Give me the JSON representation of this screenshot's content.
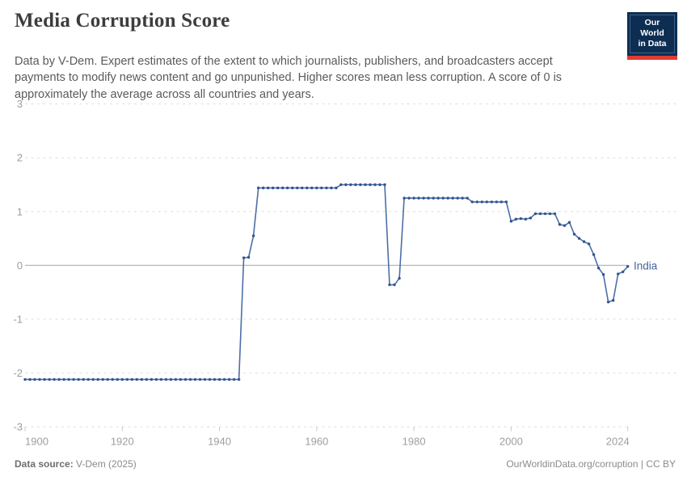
{
  "header": {
    "title": "Media Corruption Score",
    "subtitle": "Data by V-Dem. Expert estimates of the extent to which journalists, publishers, and broadcasters accept payments to modify news content and go unpunished. Higher scores mean less corruption. A score of 0 is approximately the average across all countries and years.",
    "logo": {
      "line1": "Our World",
      "line2": "in Data"
    }
  },
  "footer": {
    "source_label": "Data source:",
    "source_value": " V-Dem (2025)",
    "attribution": "OurWorldinData.org/corruption | CC BY"
  },
  "colors": {
    "line": "#4b6ea9",
    "dot": "#33548f",
    "entity_label": "#44639f",
    "grid_dashed": "#dedede",
    "zero_line": "#a3a3a3",
    "tick_mark": "#c9c9c9",
    "axis_text": "#9e9e9e",
    "logo_bg": "#0d2e52",
    "logo_red": "#e23b34"
  },
  "chart_data": {
    "type": "line",
    "title": "Media Corruption Score",
    "entity": "India",
    "xlabel": "",
    "ylabel": "",
    "x_start": 1900,
    "x_step": 1,
    "x_end": 2024,
    "ylim": [
      -3,
      3
    ],
    "y_ticks": [
      3,
      2,
      1,
      0,
      -1,
      -2,
      -3
    ],
    "x_ticks": [
      1900,
      1920,
      1940,
      1960,
      1980,
      2000,
      2024
    ],
    "grid": "horizontal dashed gridlines, solid zero line",
    "legend": "entity label at end of line",
    "values": [
      -2.12,
      -2.12,
      -2.12,
      -2.12,
      -2.12,
      -2.12,
      -2.12,
      -2.12,
      -2.12,
      -2.12,
      -2.12,
      -2.12,
      -2.12,
      -2.12,
      -2.12,
      -2.12,
      -2.12,
      -2.12,
      -2.12,
      -2.12,
      -2.12,
      -2.12,
      -2.12,
      -2.12,
      -2.12,
      -2.12,
      -2.12,
      -2.12,
      -2.12,
      -2.12,
      -2.12,
      -2.12,
      -2.12,
      -2.12,
      -2.12,
      -2.12,
      -2.12,
      -2.12,
      -2.12,
      -2.12,
      -2.12,
      -2.12,
      -2.12,
      -2.12,
      -2.12,
      0.14,
      0.15,
      0.55,
      1.44,
      1.44,
      1.44,
      1.44,
      1.44,
      1.44,
      1.44,
      1.44,
      1.44,
      1.44,
      1.44,
      1.44,
      1.44,
      1.44,
      1.44,
      1.44,
      1.44,
      1.5,
      1.5,
      1.5,
      1.5,
      1.5,
      1.5,
      1.5,
      1.5,
      1.5,
      1.5,
      -0.36,
      -0.36,
      -0.24,
      1.25,
      1.25,
      1.25,
      1.25,
      1.25,
      1.25,
      1.25,
      1.25,
      1.25,
      1.25,
      1.25,
      1.25,
      1.25,
      1.25,
      1.18,
      1.18,
      1.18,
      1.18,
      1.18,
      1.18,
      1.18,
      1.18,
      0.82,
      0.86,
      0.87,
      0.86,
      0.88,
      0.96,
      0.96,
      0.96,
      0.96,
      0.96,
      0.76,
      0.74,
      0.8,
      0.58,
      0.5,
      0.44,
      0.4,
      0.2,
      -0.05,
      -0.17,
      -0.68,
      -0.65,
      -0.16,
      -0.12,
      -0.02
    ]
  }
}
